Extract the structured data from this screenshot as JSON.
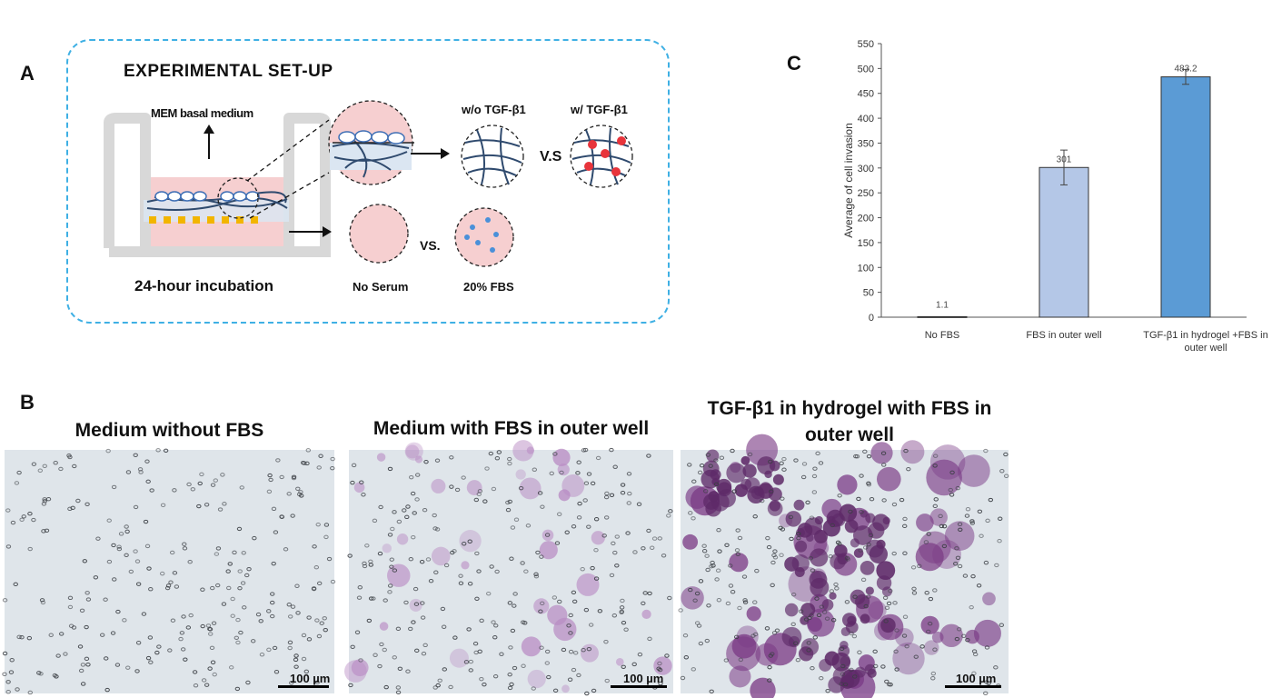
{
  "panel_a": {
    "letter": "A",
    "title": "EXPERIMENTAL SET-UP",
    "medium_label": "MEM basal medium",
    "incubation_label": "24-hour incubation",
    "without_tgf": "w/o TGF-β1",
    "with_tgf": "w/ TGF-β1",
    "vs_top": "V.S",
    "vs_bottom": "VS.",
    "no_serum": "No Serum",
    "fbs_20": "20% FBS"
  },
  "panel_b": {
    "letter": "B",
    "images": [
      {
        "title": "Medium without FBS",
        "scale": "100 µm",
        "stain": "none"
      },
      {
        "title": "Medium with FBS in outer well",
        "scale": "100 µm",
        "stain": "moderate"
      },
      {
        "title": "TGF-β1 in hydrogel with FBS in outer well",
        "scale": "100 µm",
        "stain": "heavy"
      }
    ]
  },
  "panel_c": {
    "letter": "C"
  },
  "colors": {
    "border_blue": "#3fb0e4",
    "bar_light": "#b4c7e7",
    "bar_dark": "#5b9bd5",
    "stain_purple": "#8a3f8f",
    "hydrogel_navy": "#2f4a6e",
    "pink_medium": "#f6cfd0"
  },
  "chart_data": {
    "type": "bar",
    "categories": [
      "No FBS",
      "FBS in outer well",
      "TGF-β1 in hydrogel +FBS in outer well"
    ],
    "values": [
      1.1,
      301,
      483.2
    ],
    "value_labels": [
      "1.1",
      "301",
      "483.2"
    ],
    "errors": [
      0,
      35,
      15
    ],
    "ylabel": "Average of cell invasion",
    "xlabel": "",
    "ylim": [
      0,
      550
    ],
    "yticks": [
      0,
      50,
      100,
      150,
      200,
      250,
      300,
      350,
      400,
      450,
      500,
      550
    ],
    "bar_colors": [
      "#b4c7e7",
      "#b4c7e7",
      "#5b9bd5"
    ],
    "grid": false
  }
}
